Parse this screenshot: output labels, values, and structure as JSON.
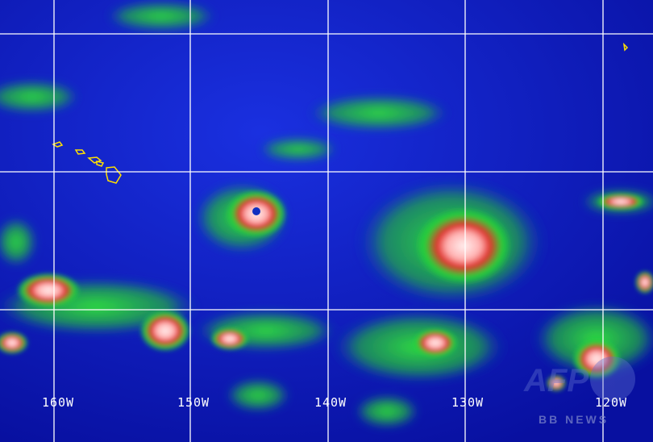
{
  "image": {
    "type": "infrared satellite image",
    "colors": {
      "ocean": "#0c18c0",
      "cloud_low": "#22d23a",
      "cloud_mid": "#e0302a",
      "cloud_top": "#ffe0e0",
      "grid": "#ffffff",
      "coastline": "#ffe000"
    },
    "features": [
      "hurricane-eye-west",
      "hurricane-east",
      "hawaiian-islands"
    ]
  },
  "grid": {
    "longitude_labels": [
      "160W",
      "150W",
      "140W",
      "130W",
      "120W"
    ]
  },
  "watermark": {
    "logo": "AFP",
    "text": "BB NEWS"
  }
}
